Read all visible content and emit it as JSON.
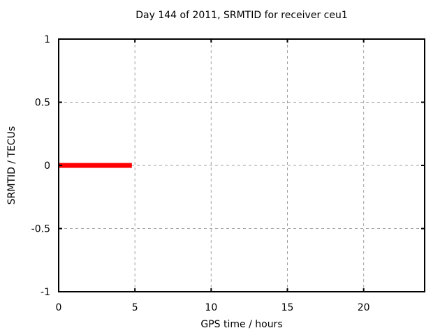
{
  "chart_data": {
    "type": "line",
    "title": "Day 144 of 2011, SRMTID for receiver ceu1",
    "xlabel": "GPS time / hours",
    "ylabel": "SRMTID / TECUs",
    "xlim": [
      0,
      24
    ],
    "ylim": [
      -1,
      1
    ],
    "xticks": [
      0,
      5,
      10,
      15,
      20
    ],
    "xtick_labels": [
      "0",
      "5",
      "10",
      "15",
      "20"
    ],
    "yticks": [
      -1,
      -0.5,
      0,
      0.5,
      1
    ],
    "ytick_labels": [
      "-1",
      "-0.5",
      "0",
      "0.5",
      "1"
    ],
    "grid": true,
    "legend_position": "none",
    "series": [
      {
        "name": "SRMTID",
        "color": "#ff0000",
        "line_width": 7,
        "x": [
          0,
          4.8
        ],
        "y": [
          0,
          0
        ]
      }
    ],
    "colors": {
      "background": "#ffffff",
      "border": "#000000",
      "grid": "#a0a0a0",
      "text": "#000000"
    }
  }
}
